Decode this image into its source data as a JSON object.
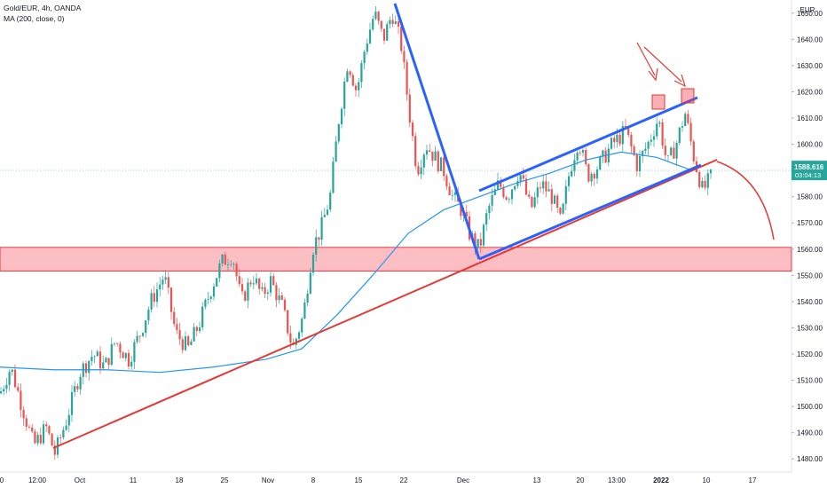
{
  "chart_data": {
    "type": "candlestick",
    "title": "Gold/EUR, 4h, OANDA",
    "indicator": "MA (200, close, 0)",
    "currency": "EUR",
    "ylim": [
      1475,
      1655
    ],
    "y_ticks": [
      1480,
      1490,
      1500,
      1510,
      1520,
      1530,
      1540,
      1550,
      1560,
      1570,
      1580,
      1590,
      1600,
      1610,
      1620,
      1630,
      1640,
      1650
    ],
    "x_labels": [
      "0",
      "12:00",
      "Oct",
      "11",
      "18",
      "25",
      "Nov",
      "8",
      "15",
      "22",
      "Dec",
      "13",
      "20",
      "13:00",
      "2022",
      "10",
      "17"
    ],
    "price_label": {
      "value": "1588.616",
      "countdown": "03:04:13"
    },
    "price_path": [
      [
        0,
        1505
      ],
      [
        12,
        1515
      ],
      [
        25,
        1500
      ],
      [
        38,
        1485
      ],
      [
        52,
        1492
      ],
      [
        62,
        1482
      ],
      [
        75,
        1495
      ],
      [
        90,
        1513
      ],
      [
        105,
        1520
      ],
      [
        118,
        1515
      ],
      [
        130,
        1525
      ],
      [
        145,
        1518
      ],
      [
        158,
        1528
      ],
      [
        170,
        1540
      ],
      [
        185,
        1550
      ],
      [
        198,
        1528
      ],
      [
        212,
        1522
      ],
      [
        225,
        1532
      ],
      [
        238,
        1545
      ],
      [
        250,
        1555
      ],
      [
        262,
        1558
      ],
      [
        272,
        1540
      ],
      [
        285,
        1550
      ],
      [
        295,
        1542
      ],
      [
        305,
        1548
      ],
      [
        318,
        1538
      ],
      [
        330,
        1522
      ],
      [
        342,
        1535
      ],
      [
        352,
        1560
      ],
      [
        362,
        1568
      ],
      [
        372,
        1580
      ],
      [
        382,
        1610
      ],
      [
        392,
        1632
      ],
      [
        402,
        1620
      ],
      [
        412,
        1638
      ],
      [
        422,
        1650
      ],
      [
        432,
        1640
      ],
      [
        442,
        1650
      ],
      [
        452,
        1638
      ],
      [
        462,
        1610
      ],
      [
        470,
        1590
      ],
      [
        480,
        1600
      ],
      [
        490,
        1595
      ],
      [
        500,
        1590
      ],
      [
        510,
        1580
      ],
      [
        520,
        1575
      ],
      [
        530,
        1565
      ],
      [
        540,
        1560
      ],
      [
        550,
        1575
      ],
      [
        562,
        1585
      ],
      [
        572,
        1580
      ],
      [
        585,
        1590
      ],
      [
        598,
        1575
      ],
      [
        610,
        1585
      ],
      [
        622,
        1580
      ],
      [
        632,
        1570
      ],
      [
        642,
        1590
      ],
      [
        652,
        1602
      ],
      [
        662,
        1588
      ],
      [
        675,
        1592
      ],
      [
        690,
        1600
      ],
      [
        705,
        1605
      ],
      [
        718,
        1592
      ],
      [
        730,
        1600
      ],
      [
        742,
        1610
      ],
      [
        752,
        1592
      ],
      [
        762,
        1600
      ],
      [
        772,
        1612
      ],
      [
        782,
        1595
      ],
      [
        792,
        1582
      ],
      [
        802,
        1588
      ]
    ],
    "ma_path": [
      [
        0,
        1515
      ],
      [
        60,
        1514
      ],
      [
        120,
        1514
      ],
      [
        180,
        1513
      ],
      [
        240,
        1515
      ],
      [
        300,
        1518
      ],
      [
        340,
        1522
      ],
      [
        380,
        1535
      ],
      [
        420,
        1550
      ],
      [
        460,
        1566
      ],
      [
        500,
        1575
      ],
      [
        540,
        1580
      ],
      [
        580,
        1585
      ],
      [
        620,
        1589
      ],
      [
        660,
        1594
      ],
      [
        700,
        1597
      ],
      [
        740,
        1595
      ],
      [
        780,
        1590
      ]
    ],
    "support_zone": {
      "low": 1555,
      "high": 1560
    },
    "price_line": 1590
  }
}
